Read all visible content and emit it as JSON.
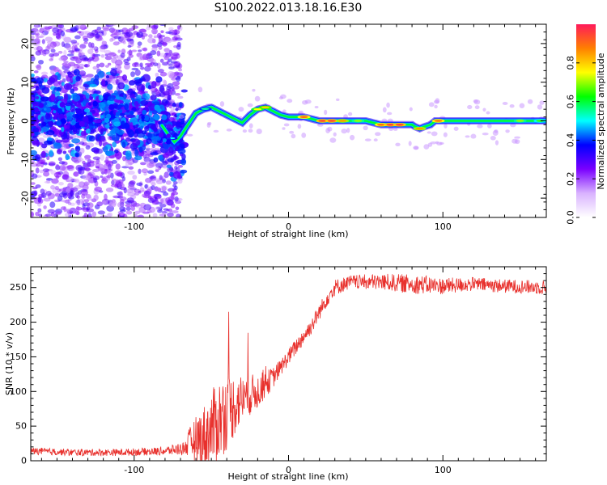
{
  "title": "S100.2022.013.18.16.E30",
  "chart_data": [
    {
      "type": "heatmap",
      "xlabel": "Height of straight line (km)",
      "ylabel": "Frequency (Hz)",
      "xlim": [
        -167,
        167
      ],
      "ylim": [
        -25,
        25
      ],
      "xticks": [
        -100,
        0,
        100
      ],
      "yticks": [
        -20,
        -10,
        0,
        10,
        20
      ],
      "colorbar": {
        "label": "Normalized spectral amplitude",
        "range": [
          0,
          1
        ],
        "ticks": [
          0.0,
          0.2,
          0.4,
          0.6,
          0.8
        ],
        "colors": [
          "#ffffff",
          "#d9b3ff",
          "#7a00ff",
          "#0000ff",
          "#00ffff",
          "#00ff00",
          "#ffff00",
          "#ff8000",
          "#ff1a5a"
        ]
      },
      "ridge": {
        "x": [
          -167,
          -140,
          -120,
          -100,
          -85,
          -78,
          -74,
          -70,
          -66,
          -60,
          -55,
          -50,
          -45,
          -40,
          -35,
          -30,
          -25,
          -20,
          -15,
          -10,
          -5,
          0,
          10,
          20,
          30,
          40,
          50,
          55,
          60,
          70,
          75,
          80,
          82,
          85,
          88,
          92,
          95,
          100,
          120,
          140,
          167
        ],
        "y": [
          1.0,
          1.5,
          2.0,
          1.0,
          0.5,
          -3.5,
          -5.5,
          -4.0,
          -1.5,
          2.0,
          3.0,
          3.5,
          2.5,
          1.5,
          0.5,
          -0.5,
          1.5,
          3.0,
          3.5,
          2.5,
          1.5,
          1.0,
          1.0,
          0.0,
          0.0,
          0.0,
          0.0,
          -0.5,
          -1.0,
          -1.0,
          -1.0,
          -1.0,
          -1.5,
          -2.0,
          -1.5,
          -1.0,
          0.0,
          0.0,
          0.0,
          0.0,
          0.0
        ]
      }
    },
    {
      "type": "line",
      "xlabel": "Height of straight line (km)",
      "ylabel": "SNR (10 * v/v)",
      "xlim": [
        -167,
        167
      ],
      "ylim": [
        0,
        280
      ],
      "xticks": [
        -100,
        0,
        100
      ],
      "yticks": [
        0,
        50,
        100,
        150,
        200,
        250
      ],
      "color": "#e8302c",
      "series": [
        {
          "x": [
            -167,
            -140,
            -110,
            -80,
            -68,
            -62,
            -55,
            -50,
            -45,
            -40,
            -35,
            -30,
            -25,
            -20,
            -15,
            -10,
            -5,
            0,
            5,
            10,
            15,
            20,
            25,
            30,
            40,
            60,
            80,
            100,
            120,
            140,
            167
          ],
          "values": [
            14,
            12,
            12,
            14,
            18,
            30,
            35,
            45,
            60,
            70,
            80,
            90,
            95,
            100,
            110,
            120,
            135,
            150,
            165,
            180,
            195,
            215,
            235,
            250,
            258,
            258,
            255,
            252,
            255,
            252,
            250
          ],
          "noise": [
            5,
            5,
            5,
            6,
            10,
            28,
            45,
            55,
            60,
            55,
            45,
            35,
            30,
            25,
            20,
            15,
            12,
            12,
            12,
            12,
            12,
            12,
            12,
            12,
            10,
            12,
            14,
            12,
            10,
            10,
            10
          ]
        }
      ]
    }
  ]
}
